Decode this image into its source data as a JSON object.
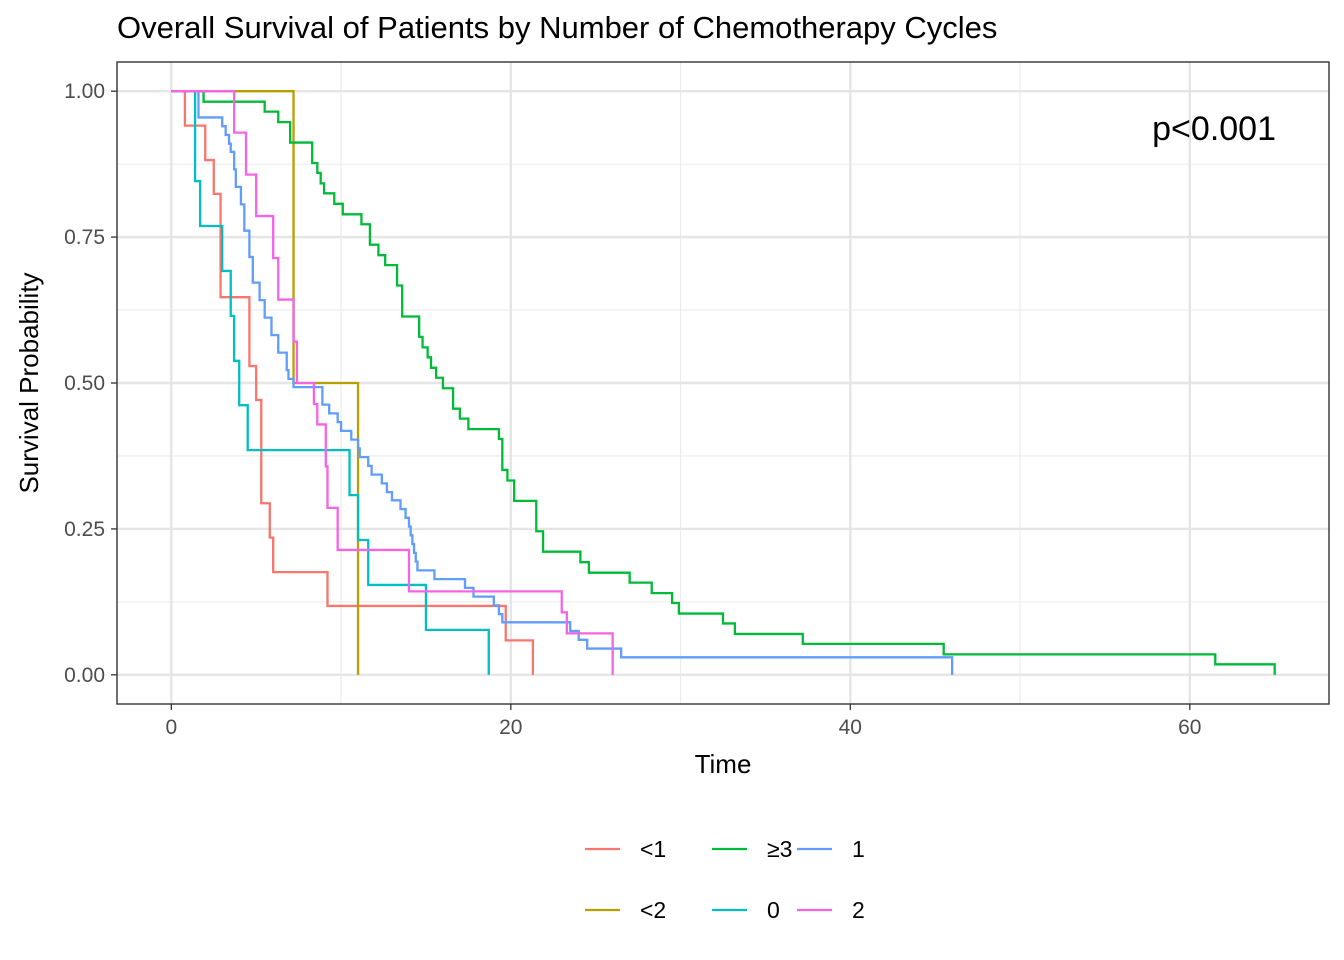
{
  "chart_data": {
    "type": "line",
    "subtype": "kaplan-meier step curves",
    "title": "Overall Survival of Patients by Number of Chemotherapy Cycles",
    "xlabel": "Time",
    "ylabel": "Survival Probability",
    "xlim": [
      -3.2,
      68.2
    ],
    "ylim": [
      -0.05,
      1.05
    ],
    "x_ticks": [
      0,
      20,
      40,
      60
    ],
    "y_ticks": [
      0.0,
      0.25,
      0.5,
      0.75,
      1.0
    ],
    "x_tick_labels": [
      "0",
      "20",
      "40",
      "60"
    ],
    "y_tick_labels": [
      "0.00",
      "0.25",
      "0.50",
      "0.75",
      "1.00"
    ],
    "grid": true,
    "legend_position": "bottom",
    "annotation": "p<0.001",
    "series": [
      {
        "name": "<1",
        "color": "#F8766D",
        "points": [
          [
            0,
            1.0
          ],
          [
            0.8,
            0.941
          ],
          [
            2.0,
            0.882
          ],
          [
            2.5,
            0.824
          ],
          [
            2.9,
            0.647
          ],
          [
            4.6,
            0.529
          ],
          [
            5.0,
            0.471
          ],
          [
            5.3,
            0.412
          ],
          [
            5.3,
            0.294
          ],
          [
            5.8,
            0.235
          ],
          [
            6.0,
            0.176
          ],
          [
            9.2,
            0.118
          ],
          [
            19.7,
            0.059
          ],
          [
            21.3,
            0.0
          ]
        ]
      },
      {
        "name": "<2",
        "color": "#B79F00",
        "points": [
          [
            0,
            1.0
          ],
          [
            7.2,
            0.5
          ],
          [
            11.0,
            0.0
          ]
        ]
      },
      {
        "name": "≥3",
        "color": "#00BA38",
        "points": [
          [
            0,
            1.0
          ],
          [
            1.9,
            0.982
          ],
          [
            5.5,
            0.965
          ],
          [
            6.3,
            0.947
          ],
          [
            7.0,
            0.912
          ],
          [
            8.3,
            0.877
          ],
          [
            8.6,
            0.86
          ],
          [
            8.8,
            0.842
          ],
          [
            9.0,
            0.825
          ],
          [
            9.6,
            0.807
          ],
          [
            10.1,
            0.789
          ],
          [
            11.2,
            0.772
          ],
          [
            11.7,
            0.737
          ],
          [
            12.2,
            0.719
          ],
          [
            12.6,
            0.702
          ],
          [
            13.1,
            0.702
          ],
          [
            13.3,
            0.667
          ],
          [
            13.6,
            0.614
          ],
          [
            14.6,
            0.579
          ],
          [
            14.8,
            0.561
          ],
          [
            15.1,
            0.544
          ],
          [
            15.3,
            0.526
          ],
          [
            15.6,
            0.509
          ],
          [
            16.0,
            0.491
          ],
          [
            16.6,
            0.456
          ],
          [
            17.0,
            0.439
          ],
          [
            17.5,
            0.421
          ],
          [
            19.3,
            0.404
          ],
          [
            19.5,
            0.351
          ],
          [
            19.8,
            0.333
          ],
          [
            20.2,
            0.298
          ],
          [
            21.5,
            0.246
          ],
          [
            21.9,
            0.211
          ],
          [
            24.1,
            0.193
          ],
          [
            24.6,
            0.175
          ],
          [
            27.0,
            0.158
          ],
          [
            28.3,
            0.14
          ],
          [
            29.5,
            0.123
          ],
          [
            29.9,
            0.105
          ],
          [
            32.5,
            0.088
          ],
          [
            33.2,
            0.07
          ],
          [
            37.2,
            0.053
          ],
          [
            45.5,
            0.035
          ],
          [
            61.5,
            0.018
          ],
          [
            65.0,
            0.0
          ]
        ]
      },
      {
        "name": "0",
        "color": "#00BFC4",
        "points": [
          [
            0,
            1.0
          ],
          [
            1.4,
            0.846
          ],
          [
            1.7,
            0.769
          ],
          [
            3.0,
            0.692
          ],
          [
            3.5,
            0.615
          ],
          [
            3.7,
            0.538
          ],
          [
            4.0,
            0.462
          ],
          [
            4.5,
            0.385
          ],
          [
            10.5,
            0.308
          ],
          [
            11.0,
            0.231
          ],
          [
            11.6,
            0.154
          ],
          [
            15.0,
            0.077
          ],
          [
            18.7,
            0.0
          ]
        ]
      },
      {
        "name": "1",
        "color": "#619CFF",
        "points": [
          [
            0,
            1.0
          ],
          [
            1.6,
            0.955
          ],
          [
            3.0,
            0.94
          ],
          [
            3.2,
            0.925
          ],
          [
            3.4,
            0.91
          ],
          [
            3.5,
            0.896
          ],
          [
            3.7,
            0.866
          ],
          [
            3.8,
            0.836
          ],
          [
            4.1,
            0.806
          ],
          [
            4.3,
            0.761
          ],
          [
            4.6,
            0.716
          ],
          [
            4.8,
            0.672
          ],
          [
            5.2,
            0.642
          ],
          [
            5.5,
            0.612
          ],
          [
            5.9,
            0.582
          ],
          [
            6.3,
            0.552
          ],
          [
            6.8,
            0.522
          ],
          [
            6.9,
            0.507
          ],
          [
            7.2,
            0.493
          ],
          [
            8.9,
            0.463
          ],
          [
            9.3,
            0.448
          ],
          [
            9.8,
            0.433
          ],
          [
            10.0,
            0.418
          ],
          [
            10.6,
            0.403
          ],
          [
            11.0,
            0.388
          ],
          [
            11.1,
            0.373
          ],
          [
            11.6,
            0.358
          ],
          [
            11.8,
            0.343
          ],
          [
            12.4,
            0.328
          ],
          [
            12.7,
            0.313
          ],
          [
            13.0,
            0.299
          ],
          [
            13.5,
            0.284
          ],
          [
            13.8,
            0.269
          ],
          [
            14.0,
            0.254
          ],
          [
            14.1,
            0.239
          ],
          [
            14.2,
            0.224
          ],
          [
            14.3,
            0.209
          ],
          [
            14.4,
            0.194
          ],
          [
            14.5,
            0.179
          ],
          [
            15.5,
            0.164
          ],
          [
            17.3,
            0.149
          ],
          [
            17.8,
            0.134
          ],
          [
            19.0,
            0.119
          ],
          [
            19.3,
            0.104
          ],
          [
            19.5,
            0.09
          ],
          [
            23.5,
            0.075
          ],
          [
            24.0,
            0.06
          ],
          [
            24.5,
            0.045
          ],
          [
            26.5,
            0.03
          ],
          [
            46.0,
            0.0
          ]
        ]
      },
      {
        "name": "2",
        "color": "#F564E3",
        "points": [
          [
            0,
            1.0
          ],
          [
            3.7,
            0.929
          ],
          [
            4.4,
            0.857
          ],
          [
            5.0,
            0.786
          ],
          [
            6.0,
            0.714
          ],
          [
            6.3,
            0.643
          ],
          [
            7.2,
            0.571
          ],
          [
            7.4,
            0.5
          ],
          [
            8.4,
            0.464
          ],
          [
            8.6,
            0.429
          ],
          [
            9.1,
            0.357
          ],
          [
            9.2,
            0.286
          ],
          [
            9.8,
            0.214
          ],
          [
            14.0,
            0.143
          ],
          [
            23.0,
            0.107
          ],
          [
            23.3,
            0.071
          ],
          [
            26.0,
            0.0
          ]
        ]
      }
    ]
  },
  "legend": {
    "row1": [
      {
        "label": "<1",
        "color": "#F8766D"
      },
      {
        "label": "≥3",
        "color": "#00BA38"
      },
      {
        "label": "1",
        "color": "#619CFF"
      }
    ],
    "row2": [
      {
        "label": "<2",
        "color": "#B79F00"
      },
      {
        "label": "0",
        "color": "#00BFC4"
      },
      {
        "label": "2",
        "color": "#F564E3"
      }
    ]
  }
}
